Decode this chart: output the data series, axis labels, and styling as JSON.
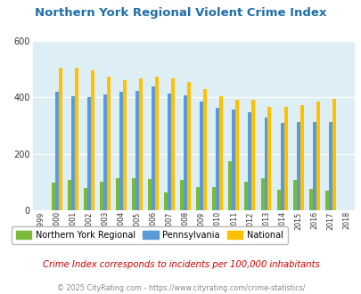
{
  "title": "Northern York Regional Violent Crime Index",
  "years": [
    1999,
    2000,
    2001,
    2002,
    2003,
    2004,
    2005,
    2006,
    2007,
    2008,
    2009,
    2010,
    2011,
    2012,
    2013,
    2014,
    2015,
    2016,
    2017,
    2018
  ],
  "northern_york": [
    0,
    98,
    108,
    78,
    100,
    115,
    115,
    110,
    63,
    107,
    83,
    83,
    175,
    100,
    113,
    73,
    108,
    75,
    68,
    0
  ],
  "pennsylvania": [
    0,
    420,
    405,
    400,
    410,
    420,
    425,
    440,
    415,
    408,
    385,
    365,
    358,
    348,
    328,
    310,
    313,
    313,
    313,
    0
  ],
  "national": [
    0,
    507,
    507,
    497,
    473,
    463,
    469,
    474,
    467,
    456,
    430,
    404,
    392,
    392,
    368,
    366,
    373,
    387,
    396,
    0
  ],
  "bar_width": 0.22,
  "green_color": "#7aba3a",
  "blue_color": "#5b9bd5",
  "orange_color": "#ffc000",
  "bg_color": "#ddeef5",
  "title_color": "#1f6fa8",
  "ylabel_max": 600,
  "yticks": [
    0,
    200,
    400,
    600
  ],
  "subtitle": "Crime Index corresponds to incidents per 100,000 inhabitants",
  "footer": "© 2025 CityRating.com - https://www.cityrating.com/crime-statistics/",
  "legend_labels": [
    "Northern York Regional",
    "Pennsylvania",
    "National"
  ]
}
